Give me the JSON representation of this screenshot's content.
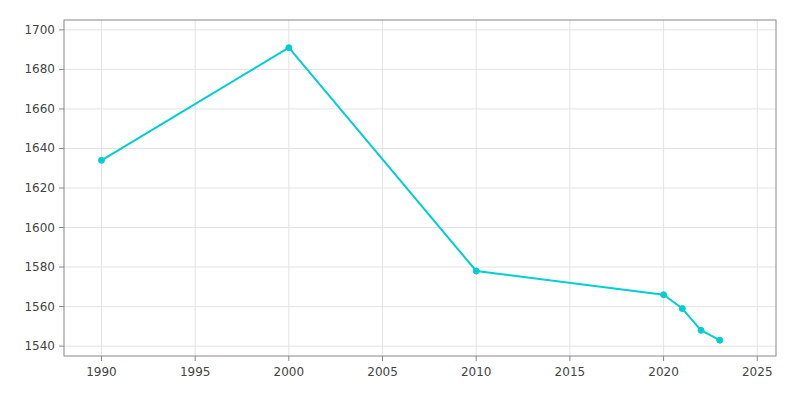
{
  "chart_data": {
    "type": "line",
    "x": [
      1990,
      2000,
      2010,
      2020,
      2021,
      2022,
      2023
    ],
    "values": [
      1634,
      1691,
      1578,
      1566,
      1559,
      1548,
      1543
    ],
    "color": "#00CED1",
    "marker": "circle",
    "xlim": [
      1988,
      2026
    ],
    "ylim": [
      1535,
      1705
    ],
    "xticks": [
      1990,
      1995,
      2000,
      2005,
      2010,
      2015,
      2020,
      2025
    ],
    "yticks": [
      1540,
      1560,
      1580,
      1600,
      1620,
      1640,
      1660,
      1680,
      1700
    ],
    "grid": true
  }
}
